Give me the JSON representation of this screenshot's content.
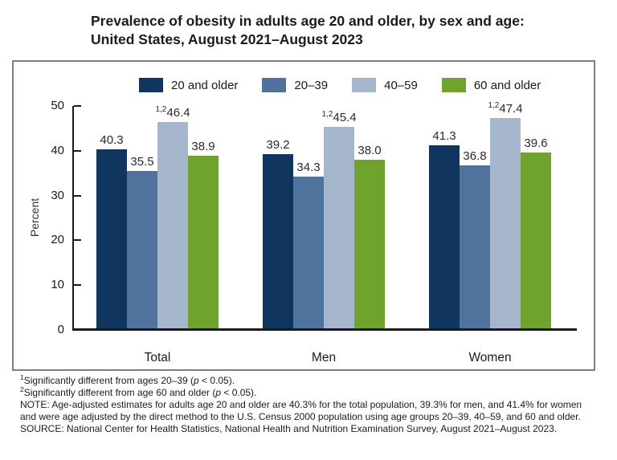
{
  "title": {
    "line1": "Prevalence of obesity in adults age 20 and older, by sex and age:",
    "line2": "United States, August 2021–August 2023"
  },
  "chart_data": {
    "type": "bar",
    "title": "Prevalence of obesity in adults age 20 and older, by sex and age: United States, August 2021–August 2023",
    "categories": [
      "Total",
      "Men",
      "Women"
    ],
    "series": [
      {
        "name": "20 and older",
        "color": "#10355e",
        "values": [
          40.3,
          39.2,
          41.3
        ],
        "value_labels": [
          "40.3",
          "39.2",
          "41.3"
        ],
        "superscript": ""
      },
      {
        "name": "20–39",
        "color": "#50739e",
        "values": [
          35.5,
          34.3,
          36.8
        ],
        "value_labels": [
          "35.5",
          "34.3",
          "36.8"
        ],
        "superscript": ""
      },
      {
        "name": "40–59",
        "color": "#a6b6cc",
        "values": [
          46.4,
          45.4,
          47.4
        ],
        "value_labels": [
          "46.4",
          "45.4",
          "47.4"
        ],
        "superscript": "1,2"
      },
      {
        "name": "60 and older",
        "color": "#6fa32e",
        "values": [
          38.9,
          38.0,
          39.6
        ],
        "value_labels": [
          "38.9",
          "38.0",
          "39.6"
        ],
        "superscript": ""
      }
    ],
    "xlabel": "",
    "ylabel": "Percent",
    "ylim": [
      0,
      50
    ],
    "yticks": [
      "0",
      "10",
      "20",
      "30",
      "40",
      "50"
    ],
    "grid": false,
    "legend_position": "top"
  },
  "footnotes": [
    {
      "sup": "1",
      "pre": "Significantly different from ages 20–39 (",
      "italic": "p",
      "post": " < 0.05)."
    },
    {
      "sup": "2",
      "pre": "Significantly different from age 60 and older (",
      "italic": "p",
      "post": " < 0.05)."
    },
    {
      "sup": "",
      "pre": "NOTE: Age-adjusted estimates for adults age 20 and older are 40.3% for the total population, 39.3% for men, and 41.4% for women and were age adjusted by the direct method to the U.S. Census 2000 population using age groups 20–39, 40–59, and 60 and older.",
      "italic": "",
      "post": ""
    },
    {
      "sup": "",
      "pre": "SOURCE: National Center for Health Statistics, National Health and Nutrition Examination Survey, August 2021–August 2023.",
      "italic": "",
      "post": ""
    }
  ]
}
